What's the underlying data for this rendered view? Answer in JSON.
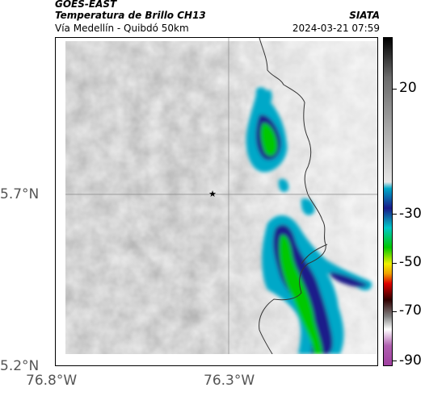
{
  "header": {
    "satellite": "GOES-EAST",
    "product": "Temperatura de Brillo CH13",
    "location": "Vía Medellín - Quibdó 50km",
    "organization": "SIATA",
    "timestamp": "2024-03-21 07:59"
  },
  "map": {
    "marker_symbol": "★",
    "lat_labels": [
      "5.7°N",
      "5.2°N"
    ],
    "lon_labels": [
      "76.8°W",
      "76.3°W"
    ]
  },
  "colorbar": {
    "labels": [
      "20",
      "-30",
      "-50",
      "-70",
      "-90"
    ],
    "colors": [
      "#1a1a1a",
      "#dcdcdc",
      "#00a8c8",
      "#1a1a8a",
      "#00c800",
      "#f0f000",
      "#e00000",
      "#300000",
      "#ffffff",
      "#a040a0"
    ]
  }
}
